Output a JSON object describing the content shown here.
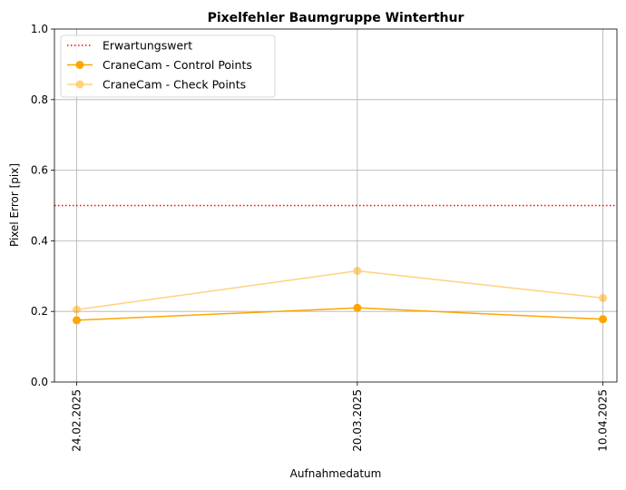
{
  "chart_data": {
    "type": "line",
    "title": "Pixelfehler Baumgruppe Winterthur",
    "xlabel": "Aufnahmedatum",
    "ylabel": "Pixel Error [pix]",
    "x": [
      "2025-02-24",
      "2025-03-20",
      "2025-04-10"
    ],
    "x_tick_labels": [
      "24.02.2025",
      "20.03.2025",
      "10.04.2025"
    ],
    "ylim": [
      0,
      1
    ],
    "y_ticks": [
      "0.0",
      "0.2",
      "0.4",
      "0.6",
      "0.8",
      "1.0"
    ],
    "grid": true,
    "legend_position": "top-left",
    "reference_line": {
      "name": "Erwartungswert",
      "y": 0.5,
      "color": "#ff0000",
      "style": "dotted"
    },
    "series": [
      {
        "name": "CraneCam - Control Points",
        "values": [
          0.175,
          0.21,
          0.178
        ],
        "color": "#ffa500",
        "alpha": 1.0
      },
      {
        "name": "CraneCam - Check Points",
        "values": [
          0.205,
          0.315,
          0.238
        ],
        "color": "#ffa500",
        "alpha": 0.5
      }
    ]
  }
}
